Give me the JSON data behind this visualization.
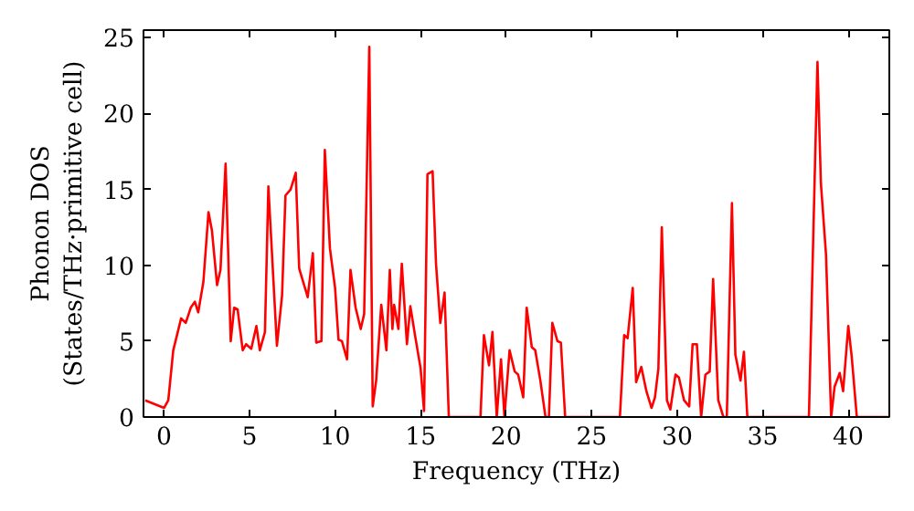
{
  "chart_data": {
    "type": "line",
    "xlabel": "Frequency (THz)",
    "ylabel": "Phonon DOS\n(States/THz·primitive cell)",
    "xlim": [
      -1.2,
      42.4
    ],
    "ylim": [
      0,
      25.5
    ],
    "xticks": [
      0,
      5,
      10,
      15,
      20,
      25,
      30,
      35,
      40
    ],
    "yticks": [
      0,
      5,
      10,
      15,
      20,
      25
    ],
    "grid": false,
    "marker": "none",
    "line_style": "solid",
    "series": [
      {
        "color": "#ff0000",
        "x": [
          -1.1,
          0,
          0.25,
          0.54,
          1.0,
          1.27,
          1.56,
          1.8,
          2.0,
          2.3,
          2.6,
          2.8,
          3.1,
          3.3,
          3.6,
          3.9,
          4.1,
          4.3,
          4.6,
          4.8,
          5.1,
          5.4,
          5.6,
          5.9,
          6.1,
          6.6,
          6.9,
          7.1,
          7.4,
          7.7,
          7.9,
          8.4,
          8.7,
          8.9,
          9.2,
          9.4,
          9.7,
          10.0,
          10.2,
          10.4,
          10.7,
          10.9,
          11.2,
          11.5,
          11.7,
          12.0,
          12.2,
          12.4,
          12.7,
          13.0,
          13.2,
          13.35,
          13.45,
          13.7,
          13.9,
          14.2,
          14.4,
          14.7,
          15.0,
          15.2,
          15.4,
          15.7,
          15.9,
          16.15,
          16.4,
          16.65,
          18.5,
          18.7,
          19.0,
          19.2,
          19.45,
          19.7,
          19.9,
          20.2,
          20.5,
          20.7,
          21.0,
          21.2,
          21.5,
          21.7,
          22.0,
          22.3,
          22.5,
          22.7,
          23.0,
          23.2,
          23.45,
          26.65,
          26.9,
          27.1,
          27.4,
          27.6,
          27.9,
          28.2,
          28.5,
          28.7,
          28.9,
          29.1,
          29.4,
          29.6,
          29.9,
          30.1,
          30.4,
          30.7,
          30.9,
          31.15,
          31.4,
          31.65,
          31.9,
          32.1,
          32.4,
          32.7,
          32.9,
          33.2,
          33.4,
          33.7,
          33.9,
          34.1,
          37.7,
          38.2,
          38.4,
          38.7,
          39.0,
          39.2,
          39.5,
          39.7,
          40.0,
          40.2,
          40.5,
          42.4
        ],
        "values": [
          1.1,
          0.6,
          1.1,
          4.4,
          6.5,
          6.2,
          7.2,
          7.6,
          6.9,
          8.9,
          13.5,
          12.3,
          8.7,
          9.7,
          16.7,
          5.0,
          7.2,
          7.1,
          4.4,
          4.8,
          4.5,
          6.0,
          4.4,
          5.6,
          15.2,
          4.7,
          8.0,
          14.6,
          15.0,
          16.1,
          9.8,
          7.9,
          10.8,
          4.9,
          5.0,
          17.6,
          11.1,
          8.5,
          5.1,
          5.0,
          3.8,
          9.7,
          7.2,
          5.8,
          6.8,
          24.4,
          0.7,
          2.4,
          7.4,
          4.4,
          9.7,
          5.8,
          7.4,
          5.8,
          10.1,
          4.8,
          7.3,
          5.2,
          3.2,
          0.4,
          16.0,
          16.2,
          10.1,
          6.2,
          8.2,
          0,
          0,
          5.4,
          3.4,
          5.6,
          0,
          3.8,
          0,
          4.4,
          3.0,
          2.8,
          1.3,
          7.2,
          4.6,
          4.4,
          2.4,
          0,
          0,
          6.2,
          5.0,
          4.9,
          0,
          0,
          5.4,
          5.2,
          8.5,
          2.3,
          3.3,
          1.7,
          0.6,
          1.3,
          3.2,
          12.5,
          1.1,
          0.5,
          2.8,
          2.6,
          1.1,
          0.7,
          4.8,
          4.8,
          0,
          2.8,
          3.0,
          9.1,
          1.1,
          0,
          0,
          14.1,
          4.1,
          2.4,
          4.3,
          0,
          0,
          23.4,
          15.4,
          10.7,
          0,
          2.0,
          2.9,
          1.7,
          6.0,
          4.0,
          0,
          0
        ]
      }
    ]
  }
}
